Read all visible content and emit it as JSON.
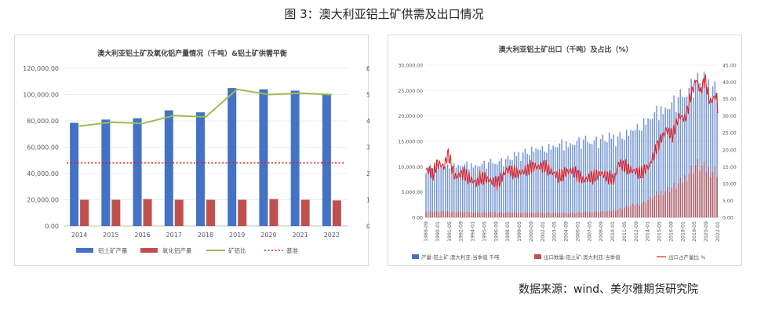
{
  "figure_title": "图 3：澳大利亚铝土矿供需及出口情况",
  "source_text": "数据来源：wind、美尔雅期货研究院",
  "chart_data": [
    {
      "type": "bar",
      "title": "澳大利亚铝土矿及氧化铝产量情况（千吨）&铝土矿供需平衡",
      "categories": [
        "2014",
        "2015",
        "2016",
        "2017",
        "2018",
        "2019",
        "2020",
        "2021",
        "2022"
      ],
      "ylim": [
        0,
        120000
      ],
      "y2lim": [
        0,
        6
      ],
      "y_ticks": [
        "0.00",
        "20,000.00",
        "40,000.00",
        "60,000.00",
        "80,000.00",
        "100,000.00",
        "120,000.00"
      ],
      "y2_ticks": [
        "0.00",
        "1.00",
        "2.00",
        "3.00",
        "4.00",
        "5.00",
        "6.00"
      ],
      "series": [
        {
          "name": "铝土矿产量",
          "kind": "bar",
          "axis": "left",
          "color": "#4472c4",
          "values": [
            78500,
            81000,
            82000,
            88000,
            86500,
            105000,
            104000,
            103000,
            100000
          ]
        },
        {
          "name": "氧化铝产量",
          "kind": "bar",
          "axis": "left",
          "color": "#c0504d",
          "values": [
            20000,
            20000,
            20500,
            20000,
            20000,
            20000,
            20500,
            20000,
            19500
          ]
        },
        {
          "name": "矿铝比",
          "kind": "line",
          "axis": "right",
          "color": "#9bbb59",
          "values": [
            3.8,
            3.95,
            3.9,
            4.2,
            4.15,
            5.2,
            5.0,
            5.05,
            5.0
          ]
        },
        {
          "name": "基准",
          "kind": "dotted",
          "axis": "right",
          "color": "#e41a1c",
          "values": [
            2.4,
            2.4,
            2.4,
            2.4,
            2.4,
            2.4,
            2.4,
            2.4,
            2.4
          ]
        }
      ],
      "legend_position": "bottom"
    },
    {
      "type": "bar",
      "title": "澳大利亚铝土矿出口（千吨）及占比（%）",
      "x_start": "1988-09",
      "x_end": "2022-07",
      "x_tick_labels": [
        "1988-09",
        "1990-01",
        "1991-05",
        "1992-09",
        "1994-01",
        "1995-05",
        "1996-09",
        "1998-01",
        "1999-05",
        "2000-09",
        "2002-01",
        "2003-05",
        "2004-09",
        "2006-01",
        "2007-05",
        "2008-09",
        "2010-01",
        "2011-05",
        "2012-09",
        "2014-01",
        "2015-05",
        "2016-09",
        "2018-01",
        "2019-05",
        "2020-09",
        "2022-01"
      ],
      "ylim": [
        0,
        30000
      ],
      "y2lim": [
        0,
        45
      ],
      "y_ticks": [
        "0.00",
        "5,000.00",
        "10,000.00",
        "15,000.00",
        "20,000.00",
        "25,000.00",
        "30,000.00"
      ],
      "y2_ticks": [
        "0.00",
        "5.00",
        "10.00",
        "15.00",
        "20.00",
        "25.00",
        "30.00",
        "35.00",
        "40.00",
        "45.00"
      ],
      "series": [
        {
          "name": "产量:铝土矿:澳大利亚:当季值 千吨",
          "kind": "bar",
          "axis": "left",
          "color": "#4472c4",
          "anchor_years": [
            1988.7,
            1992.0,
            1995.0,
            1998.0,
            2000.0,
            2003.0,
            2006.0,
            2009.0,
            2012.0,
            2014.0,
            2016.0,
            2018.0,
            2019.5,
            2020.5,
            2021.5,
            2022.6
          ],
          "anchor_values": [
            10000,
            10300,
            10500,
            11500,
            13000,
            14000,
            15000,
            15500,
            16500,
            19000,
            21500,
            23500,
            26500,
            27500,
            26500,
            25500
          ]
        },
        {
          "name": "出口数量:铝土矿:澳大利亚:当季值",
          "kind": "bar",
          "axis": "left",
          "color": "#c0504d",
          "anchor_years": [
            1988.7,
            1995.0,
            2005.0,
            2010.0,
            2014.0,
            2016.0,
            2018.0,
            2019.0,
            2020.0,
            2021.0,
            2022.6
          ],
          "anchor_values": [
            1200,
            1000,
            900,
            1200,
            3000,
            5000,
            6500,
            8500,
            10500,
            9500,
            9000
          ]
        },
        {
          "name": "出口占产量比 %",
          "kind": "line",
          "axis": "right",
          "color": "#e41a1c",
          "anchor_years": [
            1988.7,
            1989.5,
            1990.0,
            1990.8,
            1991.2,
            1992.0,
            1993.0,
            1994.5,
            1995.0,
            1996.0,
            1997.0,
            1998.0,
            1999.5,
            2001.0,
            2002.5,
            2004.0,
            2005.5,
            2007.0,
            2008.0,
            2009.0,
            2010.5,
            2011.0,
            2012.5,
            2013.5,
            2014.5,
            2015.5,
            2016.5,
            2017.2,
            2018.0,
            2018.7,
            2019.5,
            2020.0,
            2020.5,
            2021.0,
            2021.6,
            2022.3,
            2022.6
          ],
          "anchor_values": [
            14,
            13,
            16,
            15,
            19,
            12,
            13,
            10,
            12,
            11,
            10,
            14,
            13,
            15,
            15,
            12,
            14,
            11,
            12,
            13,
            11,
            16,
            14,
            13,
            15,
            21,
            26,
            24,
            30,
            29,
            37,
            41,
            37,
            41,
            34,
            36,
            31
          ]
        }
      ],
      "legend_position": "bottom"
    }
  ]
}
